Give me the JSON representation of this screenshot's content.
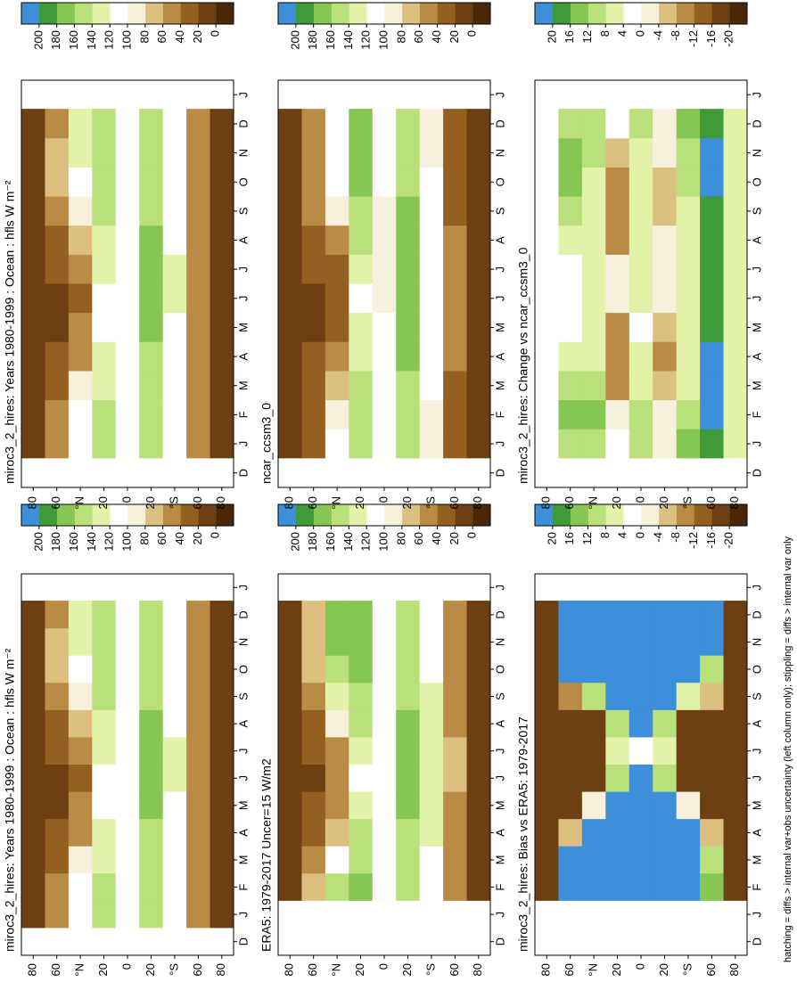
{
  "footnote": "hatching = diffs > internal var+obs uncertainty (left column only); stippling = diffs > internal var only",
  "chart_data": [
    {
      "type": "heatmap",
      "title": "miroc3_2_hires: Years 1980-1999 : Ocean : hfls W m⁻²",
      "x_labels": [
        "D",
        "J",
        "F",
        "M",
        "A",
        "M",
        "J",
        "J",
        "A",
        "S",
        "O",
        "N",
        "D",
        "J"
      ],
      "ylim": [
        -90,
        90
      ],
      "yticks": [
        80,
        60,
        {
          "value": 40,
          "label": "°N"
        },
        20,
        0,
        {
          "value": -20,
          "label": "20"
        },
        {
          "value": -40,
          "label": "°S"
        },
        {
          "value": -60,
          "label": "60"
        },
        {
          "value": -80,
          "label": "80"
        }
      ],
      "cbar_ticks": [
        0,
        20,
        40,
        60,
        80,
        100,
        120,
        140,
        160,
        180,
        200
      ],
      "colors": [
        "#4a2708",
        "#6e3f12",
        "#94601f",
        "#b98b45",
        "#dcc081",
        "#f7f0dc",
        "#ffffff",
        "#e2f2a8",
        "#b9e07a",
        "#86c653",
        "#3f9a3a",
        "#3d8fd9"
      ],
      "values": [
        [
          10,
          10,
          10,
          10,
          10,
          10,
          10,
          10,
          10,
          10,
          10,
          10
        ],
        [
          40,
          40,
          30,
          20,
          15,
          15,
          20,
          30,
          50,
          60,
          60,
          50
        ],
        [
          110,
          100,
          80,
          50,
          40,
          35,
          40,
          60,
          90,
          110,
          120,
          120
        ],
        [
          150,
          140,
          130,
          120,
          110,
          110,
          120,
          130,
          140,
          150,
          155,
          155
        ],
        [
          110,
          110,
          110,
          110,
          100,
          100,
          100,
          100,
          100,
          100,
          105,
          110
        ],
        [
          140,
          140,
          140,
          150,
          165,
          175,
          175,
          165,
          150,
          140,
          140,
          140
        ],
        [
          100,
          100,
          105,
          110,
          115,
          120,
          120,
          115,
          110,
          105,
          100,
          100
        ],
        [
          40,
          40,
          45,
          50,
          55,
          55,
          55,
          50,
          45,
          40,
          40,
          40
        ],
        [
          10,
          10,
          10,
          10,
          10,
          10,
          10,
          10,
          10,
          10,
          10,
          10
        ]
      ]
    },
    {
      "type": "heatmap",
      "title": "ERA5: 1979-2017 Uncer=15 W/m2",
      "x_labels": [
        "D",
        "J",
        "F",
        "M",
        "A",
        "M",
        "J",
        "J",
        "A",
        "S",
        "O",
        "N",
        "D",
        "J"
      ],
      "ylim": [
        -90,
        90
      ],
      "yticks": [
        80,
        60,
        {
          "value": 40,
          "label": "°N"
        },
        20,
        0,
        {
          "value": -20,
          "label": "20"
        },
        {
          "value": -40,
          "label": "°S"
        },
        {
          "value": -60,
          "label": "60"
        },
        {
          "value": -80,
          "label": "80"
        }
      ],
      "cbar_ticks": [
        0,
        20,
        40,
        60,
        80,
        100,
        120,
        140,
        160,
        180,
        200
      ],
      "colors": [
        "#4a2708",
        "#6e3f12",
        "#94601f",
        "#b98b45",
        "#dcc081",
        "#f7f0dc",
        "#ffffff",
        "#e2f2a8",
        "#b9e07a",
        "#86c653",
        "#3f9a3a",
        "#3d8fd9"
      ],
      "values": [
        [
          null,
          5,
          5,
          5,
          5,
          5,
          5,
          5,
          5,
          5,
          5,
          5
        ],
        [
          null,
          60,
          50,
          30,
          20,
          15,
          20,
          30,
          50,
          70,
          75,
          70
        ],
        [
          null,
          140,
          110,
          70,
          50,
          40,
          50,
          80,
          120,
          150,
          160,
          160
        ],
        [
          null,
          160,
          150,
          140,
          120,
          110,
          120,
          140,
          150,
          160,
          160,
          160
        ],
        [
          null,
          110,
          100,
          100,
          110,
          110,
          105,
          100,
          100,
          105,
          110,
          110
        ],
        [
          null,
          140,
          150,
          155,
          165,
          170,
          170,
          165,
          155,
          145,
          140,
          140
        ],
        [
          null,
          100,
          110,
          120,
          125,
          130,
          130,
          125,
          120,
          110,
          100,
          100
        ],
        [
          null,
          40,
          45,
          50,
          55,
          60,
          60,
          55,
          50,
          45,
          40,
          40
        ],
        [
          null,
          5,
          5,
          5,
          5,
          5,
          5,
          5,
          5,
          5,
          5,
          5
        ]
      ]
    },
    {
      "type": "heatmap",
      "title": "miroc3_2_hires: Bias vs ERA5: 1979-2017",
      "x_labels": [
        "D",
        "J",
        "F",
        "M",
        "A",
        "M",
        "J",
        "J",
        "A",
        "S",
        "O",
        "N",
        "D",
        "J"
      ],
      "ylim": [
        -90,
        90
      ],
      "yticks": [
        80,
        60,
        {
          "value": 40,
          "label": "°N"
        },
        20,
        0,
        {
          "value": -20,
          "label": "20"
        },
        {
          "value": -40,
          "label": "°S"
        },
        {
          "value": -60,
          "label": "60"
        },
        {
          "value": -80,
          "label": "80"
        }
      ],
      "cbar_ticks": [
        -20,
        -16,
        -12,
        -8,
        -4,
        0,
        4,
        8,
        12,
        16,
        20
      ],
      "colors": [
        "#4a2708",
        "#6e3f12",
        "#94601f",
        "#b98b45",
        "#dcc081",
        "#f7f0dc",
        "#ffffff",
        "#e2f2a8",
        "#b9e07a",
        "#86c653",
        "#3f9a3a",
        "#3d8fd9"
      ],
      "values": [
        [
          null,
          -20,
          -20,
          -20,
          -20,
          -20,
          -20,
          -20,
          -20,
          -20,
          -20,
          -20
        ],
        [
          null,
          20,
          20,
          -8,
          -20,
          -20,
          -20,
          -20,
          -12,
          20,
          20,
          20
        ],
        [
          null,
          20,
          20,
          20,
          -4,
          -20,
          -20,
          -20,
          8,
          20,
          20,
          20
        ],
        [
          null,
          20,
          20,
          20,
          20,
          8,
          4,
          8,
          20,
          20,
          20,
          20
        ],
        [
          null,
          20,
          20,
          20,
          20,
          20,
          0,
          20,
          20,
          20,
          20,
          20
        ],
        [
          null,
          20,
          20,
          20,
          20,
          8,
          4,
          8,
          20,
          20,
          20,
          20
        ],
        [
          null,
          20,
          20,
          20,
          -4,
          -20,
          -20,
          -20,
          4,
          20,
          20,
          20
        ],
        [
          null,
          12,
          8,
          -8,
          -20,
          -20,
          -20,
          -20,
          -8,
          8,
          20,
          20
        ],
        [
          null,
          -20,
          -20,
          -20,
          -20,
          -20,
          -20,
          -20,
          -20,
          -20,
          -20,
          -20
        ]
      ]
    },
    {
      "type": "heatmap",
      "title": "miroc3_2_hires: Years 1980-1999 : Ocean : hfls W m⁻²",
      "x_labels": [
        "D",
        "J",
        "F",
        "M",
        "A",
        "M",
        "J",
        "J",
        "A",
        "S",
        "O",
        "N",
        "D",
        "J"
      ],
      "ylim": [
        -90,
        90
      ],
      "yticks": [
        80,
        60,
        {
          "value": 40,
          "label": "°N"
        },
        20,
        0,
        {
          "value": -20,
          "label": "20"
        },
        {
          "value": -40,
          "label": "°S"
        },
        {
          "value": -60,
          "label": "60"
        },
        {
          "value": -80,
          "label": "80"
        }
      ],
      "cbar_ticks": [
        0,
        20,
        40,
        60,
        80,
        100,
        120,
        140,
        160,
        180,
        200
      ],
      "colors": [
        "#4a2708",
        "#6e3f12",
        "#94601f",
        "#b98b45",
        "#dcc081",
        "#f7f0dc",
        "#ffffff",
        "#e2f2a8",
        "#b9e07a",
        "#86c653",
        "#3f9a3a",
        "#3d8fd9"
      ],
      "values": [
        [
          10,
          10,
          10,
          10,
          10,
          10,
          10,
          10,
          10,
          10,
          10,
          10
        ],
        [
          40,
          40,
          30,
          20,
          15,
          15,
          20,
          30,
          50,
          60,
          60,
          50
        ],
        [
          110,
          100,
          80,
          50,
          40,
          35,
          40,
          60,
          90,
          110,
          120,
          120
        ],
        [
          150,
          140,
          130,
          120,
          110,
          110,
          120,
          130,
          140,
          150,
          155,
          155
        ],
        [
          110,
          110,
          110,
          110,
          100,
          100,
          100,
          100,
          100,
          100,
          105,
          110
        ],
        [
          140,
          140,
          140,
          150,
          165,
          175,
          175,
          165,
          150,
          140,
          140,
          140
        ],
        [
          100,
          100,
          105,
          110,
          115,
          120,
          120,
          115,
          110,
          105,
          100,
          100
        ],
        [
          40,
          40,
          45,
          50,
          55,
          55,
          55,
          50,
          45,
          40,
          40,
          40
        ],
        [
          10,
          10,
          10,
          10,
          10,
          10,
          10,
          10,
          10,
          10,
          10,
          10
        ]
      ]
    },
    {
      "type": "heatmap",
      "title": "ncar_ccsm3_0",
      "x_labels": [
        "D",
        "J",
        "F",
        "M",
        "A",
        "M",
        "J",
        "J",
        "A",
        "S",
        "O",
        "N",
        "D",
        "J"
      ],
      "ylim": [
        -90,
        90
      ],
      "yticks": [
        80,
        60,
        {
          "value": 40,
          "label": "°N"
        },
        20,
        0,
        {
          "value": -20,
          "label": "20"
        },
        {
          "value": -40,
          "label": "°S"
        },
        {
          "value": -60,
          "label": "60"
        },
        {
          "value": -80,
          "label": "80"
        }
      ],
      "cbar_ticks": [
        0,
        20,
        40,
        60,
        80,
        100,
        120,
        140,
        160,
        180,
        200
      ],
      "colors": [
        "#4a2708",
        "#6e3f12",
        "#94601f",
        "#b98b45",
        "#dcc081",
        "#f7f0dc",
        "#ffffff",
        "#e2f2a8",
        "#b9e07a",
        "#86c653",
        "#3f9a3a",
        "#3d8fd9"
      ],
      "values": [
        [
          10,
          10,
          10,
          10,
          10,
          10,
          10,
          10,
          10,
          10,
          10,
          10
        ],
        [
          30,
          30,
          25,
          20,
          15,
          15,
          20,
          25,
          40,
          50,
          50,
          40
        ],
        [
          100,
          90,
          70,
          45,
          35,
          30,
          35,
          55,
          85,
          105,
          110,
          110
        ],
        [
          150,
          145,
          140,
          130,
          120,
          115,
          125,
          140,
          150,
          160,
          165,
          160
        ],
        [
          100,
          100,
          105,
          105,
          100,
          95,
          95,
          95,
          95,
          100,
          100,
          100
        ],
        [
          145,
          145,
          150,
          160,
          170,
          175,
          175,
          170,
          160,
          150,
          145,
          145
        ],
        [
          90,
          95,
          100,
          105,
          110,
          115,
          115,
          110,
          105,
          100,
          95,
          90
        ],
        [
          30,
          30,
          35,
          40,
          45,
          45,
          45,
          40,
          35,
          30,
          30,
          30
        ],
        [
          5,
          5,
          5,
          5,
          5,
          5,
          5,
          5,
          5,
          5,
          5,
          5
        ]
      ]
    },
    {
      "type": "heatmap",
      "title": "miroc3_2_hires: Change vs ncar_ccsm3_0",
      "x_labels": [
        "D",
        "J",
        "F",
        "M",
        "A",
        "M",
        "J",
        "J",
        "A",
        "S",
        "O",
        "N",
        "D",
        "J"
      ],
      "ylim": [
        -90,
        90
      ],
      "yticks": [
        80,
        60,
        {
          "value": 40,
          "label": "°N"
        },
        20,
        0,
        {
          "value": -20,
          "label": "20"
        },
        {
          "value": -40,
          "label": "°S"
        },
        {
          "value": -60,
          "label": "60"
        },
        {
          "value": -80,
          "label": "80"
        }
      ],
      "cbar_ticks": [
        -20,
        -16,
        -12,
        -8,
        -4,
        0,
        4,
        8,
        12,
        16,
        20
      ],
      "colors": [
        "#4a2708",
        "#6e3f12",
        "#94601f",
        "#b98b45",
        "#dcc081",
        "#f7f0dc",
        "#ffffff",
        "#e2f2a8",
        "#b9e07a",
        "#86c653",
        "#3f9a3a",
        "#3d8fd9"
      ],
      "values": [
        [
          0,
          0,
          0,
          0,
          0,
          0,
          0,
          0,
          0,
          0,
          0,
          0
        ],
        [
          8,
          12,
          8,
          4,
          0,
          0,
          0,
          4,
          8,
          12,
          12,
          8
        ],
        [
          8,
          12,
          8,
          4,
          4,
          4,
          4,
          4,
          4,
          4,
          8,
          8
        ],
        [
          0,
          -4,
          -12,
          -12,
          -12,
          -4,
          -4,
          -12,
          -12,
          -12,
          -8,
          0
        ],
        [
          8,
          8,
          4,
          4,
          0,
          4,
          4,
          4,
          4,
          4,
          4,
          8
        ],
        [
          -4,
          -4,
          -8,
          -12,
          -8,
          -4,
          -4,
          -4,
          -8,
          -8,
          -4,
          -4
        ],
        [
          12,
          8,
          4,
          4,
          4,
          4,
          4,
          4,
          4,
          8,
          8,
          12
        ],
        [
          16,
          20,
          20,
          20,
          16,
          16,
          16,
          16,
          16,
          20,
          20,
          16
        ],
        [
          4,
          4,
          4,
          4,
          4,
          4,
          4,
          4,
          4,
          4,
          4,
          4
        ]
      ]
    }
  ]
}
